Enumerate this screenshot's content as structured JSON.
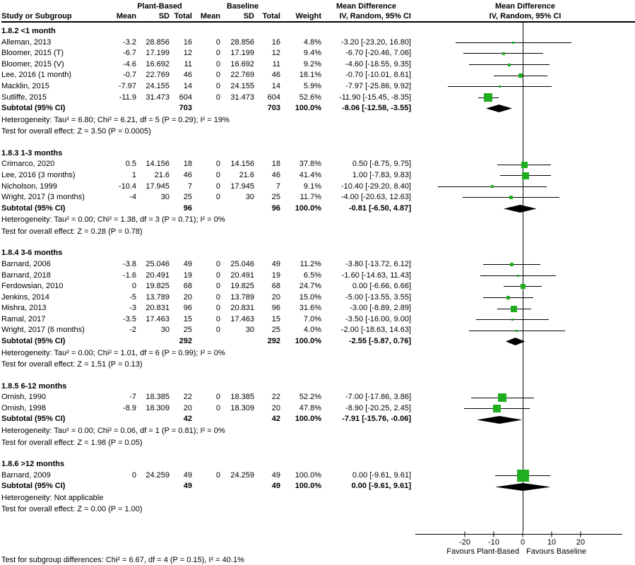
{
  "header": {
    "study_col": "Study or Subgroup",
    "group1": "Plant-Based",
    "group2": "Baseline",
    "md_label": "Mean Difference",
    "md_sub": "IV, Random, 95% CI",
    "plot_md_label": "Mean Difference",
    "plot_md_sub": "IV, Random, 95% CI",
    "cols": [
      "Mean",
      "SD",
      "Total",
      "Mean",
      "SD",
      "Total",
      "Weight"
    ]
  },
  "chart_data": {
    "type": "forest",
    "effect_measure": "Mean Difference, IV, Random, 95% CI",
    "colors": {
      "marker": "#1fae1f",
      "diamond": "#000000",
      "line": "#000000"
    },
    "axis": {
      "ticks": [
        -20,
        -10,
        0,
        10,
        20
      ],
      "xmin": -37,
      "xmax": 36,
      "label_left": "Favours Plant-Based",
      "label_right": "Favours Baseline"
    },
    "subgroups": [
      {
        "label": "1.8.2 <1 month",
        "studies": [
          {
            "study": "Alleman, 2013",
            "mean1": "-3.2",
            "sd1": "28.856",
            "total1": "16",
            "mean2": "0",
            "sd2": "28.856",
            "total2": "16",
            "weight": "4.8%",
            "ci_label": "-3.20 [-23.20, 16.80]",
            "est": -3.2,
            "lo": -23.2,
            "hi": 16.8,
            "weight_pct": 4.8
          },
          {
            "study": "Bloomer, 2015 (T)",
            "mean1": "-6.7",
            "sd1": "17.199",
            "total1": "12",
            "mean2": "0",
            "sd2": "17.199",
            "total2": "12",
            "weight": "9.4%",
            "ci_label": "-6.70 [-20.46, 7.06]",
            "est": -6.7,
            "lo": -20.46,
            "hi": 7.06,
            "weight_pct": 9.4
          },
          {
            "study": "Bloomer, 2015 (V)",
            "mean1": "-4.6",
            "sd1": "16.692",
            "total1": "11",
            "mean2": "0",
            "sd2": "16.692",
            "total2": "11",
            "weight": "9.2%",
            "ci_label": "-4.60 [-18.55, 9.35]",
            "est": -4.6,
            "lo": -18.55,
            "hi": 9.35,
            "weight_pct": 9.2
          },
          {
            "study": "Lee, 2016 (1 month)",
            "mean1": "-0.7",
            "sd1": "22.769",
            "total1": "46",
            "mean2": "0",
            "sd2": "22.769",
            "total2": "46",
            "weight": "18.1%",
            "ci_label": "-0.70 [-10.01, 8.61]",
            "est": -0.7,
            "lo": -10.01,
            "hi": 8.61,
            "weight_pct": 18.1
          },
          {
            "study": "Macklin, 2015",
            "mean1": "-7.97",
            "sd1": "24.155",
            "total1": "14",
            "mean2": "0",
            "sd2": "24.155",
            "total2": "14",
            "weight": "5.9%",
            "ci_label": "-7.97 [-25.86, 9.92]",
            "est": -7.97,
            "lo": -25.86,
            "hi": 9.92,
            "weight_pct": 5.9
          },
          {
            "study": "Sutliffe, 2015",
            "mean1": "-11.9",
            "sd1": "31.473",
            "total1": "604",
            "mean2": "0",
            "sd2": "31.473",
            "total2": "604",
            "weight": "52.6%",
            "ci_label": "-11.90 [-15.45, -8.35]",
            "est": -11.9,
            "lo": -15.45,
            "hi": -8.35,
            "weight_pct": 52.6
          }
        ],
        "subtotal": {
          "study": "Subtotal (95% CI)",
          "total1": "703",
          "total2": "703",
          "weight": "100.0%",
          "ci_label": "-8.06 [-12.58, -3.55]",
          "est": -8.06,
          "lo": -12.58,
          "hi": -3.55
        },
        "heterogeneity": "Heterogeneity: Tau² = 6.80; Chi² = 6.21, df = 5 (P = 0.29); I² = 19%",
        "overall": "Test for overall effect: Z = 3.50 (P = 0.0005)"
      },
      {
        "label": "1.8.3 1-3 months",
        "studies": [
          {
            "study": "Crimarco, 2020",
            "mean1": "0.5",
            "sd1": "14.156",
            "total1": "18",
            "mean2": "0",
            "sd2": "14.156",
            "total2": "18",
            "weight": "37.8%",
            "ci_label": "0.50 [-8.75, 9.75]",
            "est": 0.5,
            "lo": -8.75,
            "hi": 9.75,
            "weight_pct": 37.8
          },
          {
            "study": "Lee, 2016 (3 months)",
            "mean1": "1",
            "sd1": "21.6",
            "total1": "46",
            "mean2": "0",
            "sd2": "21.6",
            "total2": "46",
            "weight": "41.4%",
            "ci_label": "1.00 [-7.83, 9.83]",
            "est": 1.0,
            "lo": -7.83,
            "hi": 9.83,
            "weight_pct": 41.4
          },
          {
            "study": "Nicholson, 1999",
            "mean1": "-10.4",
            "sd1": "17.945",
            "total1": "7",
            "mean2": "0",
            "sd2": "17.945",
            "total2": "7",
            "weight": "9.1%",
            "ci_label": "-10.40 [-29.20, 8.40]",
            "est": -10.4,
            "lo": -29.2,
            "hi": 8.4,
            "weight_pct": 9.1
          },
          {
            "study": "Wright, 2017 (3 months)",
            "mean1": "-4",
            "sd1": "30",
            "total1": "25",
            "mean2": "0",
            "sd2": "30",
            "total2": "25",
            "weight": "11.7%",
            "ci_label": "-4.00 [-20.63, 12.63]",
            "est": -4.0,
            "lo": -20.63,
            "hi": 12.63,
            "weight_pct": 11.7
          }
        ],
        "subtotal": {
          "study": "Subtotal (95% CI)",
          "total1": "96",
          "total2": "96",
          "weight": "100.0%",
          "ci_label": "-0.81 [-6.50, 4.87]",
          "est": -0.81,
          "lo": -6.5,
          "hi": 4.87
        },
        "heterogeneity": "Heterogeneity: Tau² = 0.00; Chi² = 1.38, df = 3 (P = 0.71); I² = 0%",
        "overall": "Test for overall effect: Z = 0.28 (P = 0.78)"
      },
      {
        "label": "1.8.4 3-6 months",
        "studies": [
          {
            "study": "Barnard, 2006",
            "mean1": "-3.8",
            "sd1": "25.046",
            "total1": "49",
            "mean2": "0",
            "sd2": "25.046",
            "total2": "49",
            "weight": "11.2%",
            "ci_label": "-3.80 [-13.72, 6.12]",
            "est": -3.8,
            "lo": -13.72,
            "hi": 6.12,
            "weight_pct": 11.2
          },
          {
            "study": "Barnard, 2018",
            "mean1": "-1.6",
            "sd1": "20.491",
            "total1": "19",
            "mean2": "0",
            "sd2": "20.491",
            "total2": "19",
            "weight": "6.5%",
            "ci_label": "-1.60 [-14.63, 11.43]",
            "est": -1.6,
            "lo": -14.63,
            "hi": 11.43,
            "weight_pct": 6.5
          },
          {
            "study": "Ferdowsian, 2010",
            "mean1": "0",
            "sd1": "19.825",
            "total1": "68",
            "mean2": "0",
            "sd2": "19.825",
            "total2": "68",
            "weight": "24.7%",
            "ci_label": "0.00 [-6.66, 6.66]",
            "est": 0.0,
            "lo": -6.66,
            "hi": 6.66,
            "weight_pct": 24.7
          },
          {
            "study": "Jenkins, 2014",
            "mean1": "-5",
            "sd1": "13.789",
            "total1": "20",
            "mean2": "0",
            "sd2": "13.789",
            "total2": "20",
            "weight": "15.0%",
            "ci_label": "-5.00 [-13.55, 3.55]",
            "est": -5.0,
            "lo": -13.55,
            "hi": 3.55,
            "weight_pct": 15.0
          },
          {
            "study": "Mishra, 2013",
            "mean1": "-3",
            "sd1": "20.831",
            "total1": "96",
            "mean2": "0",
            "sd2": "20.831",
            "total2": "96",
            "weight": "31.6%",
            "ci_label": "-3.00 [-8.89, 2.89]",
            "est": -3.0,
            "lo": -8.89,
            "hi": 2.89,
            "weight_pct": 31.6
          },
          {
            "study": "Ramal, 2017",
            "mean1": "-3.5",
            "sd1": "17.463",
            "total1": "15",
            "mean2": "0",
            "sd2": "17.463",
            "total2": "15",
            "weight": "7.0%",
            "ci_label": "-3.50 [-16.00, 9.00]",
            "est": -3.5,
            "lo": -16.0,
            "hi": 9.0,
            "weight_pct": 7.0
          },
          {
            "study": "Wright, 2017 (6 months)",
            "mean1": "-2",
            "sd1": "30",
            "total1": "25",
            "mean2": "0",
            "sd2": "30",
            "total2": "25",
            "weight": "4.0%",
            "ci_label": "-2.00 [-18.63, 14.63]",
            "est": -2.0,
            "lo": -18.63,
            "hi": 14.63,
            "weight_pct": 4.0
          }
        ],
        "subtotal": {
          "study": "Subtotal (95% CI)",
          "total1": "292",
          "total2": "292",
          "weight": "100.0%",
          "ci_label": "-2.55 [-5.87, 0.76]",
          "est": -2.55,
          "lo": -5.87,
          "hi": 0.76
        },
        "heterogeneity": "Heterogeneity: Tau² = 0.00; Chi² = 1.01, df = 6 (P = 0.99); I² = 0%",
        "overall": "Test for overall effect: Z = 1.51 (P = 0.13)"
      },
      {
        "label": "1.8.5 6-12 months",
        "studies": [
          {
            "study": "Ornish, 1990",
            "mean1": "-7",
            "sd1": "18.385",
            "total1": "22",
            "mean2": "0",
            "sd2": "18.385",
            "total2": "22",
            "weight": "52.2%",
            "ci_label": "-7.00 [-17.86, 3.86]",
            "est": -7.0,
            "lo": -17.86,
            "hi": 3.86,
            "weight_pct": 52.2
          },
          {
            "study": "Ornish, 1998",
            "mean1": "-8.9",
            "sd1": "18.309",
            "total1": "20",
            "mean2": "0",
            "sd2": "18.309",
            "total2": "20",
            "weight": "47.8%",
            "ci_label": "-8.90 [-20.25, 2.45]",
            "est": -8.9,
            "lo": -20.25,
            "hi": 2.45,
            "weight_pct": 47.8
          }
        ],
        "subtotal": {
          "study": "Subtotal (95% CI)",
          "total1": "42",
          "total2": "42",
          "weight": "100.0%",
          "ci_label": "-7.91 [-15.76, -0.06]",
          "est": -7.91,
          "lo": -15.76,
          "hi": -0.06
        },
        "heterogeneity": "Heterogeneity: Tau² = 0.00; Chi² = 0.06, df = 1 (P = 0.81); I² = 0%",
        "overall": "Test for overall effect: Z = 1.98 (P = 0.05)"
      },
      {
        "label": "1.8.6 >12 months",
        "studies": [
          {
            "study": "Barnard, 2009",
            "mean1": "0",
            "sd1": "24.259",
            "total1": "49",
            "mean2": "0",
            "sd2": "24.259",
            "total2": "49",
            "weight": "100.0%",
            "ci_label": "0.00 [-9.61, 9.61]",
            "est": 0.0,
            "lo": -9.61,
            "hi": 9.61,
            "weight_pct": 100.0
          }
        ],
        "subtotal": {
          "study": "Subtotal (95% CI)",
          "total1": "49",
          "total2": "49",
          "weight": "100.0%",
          "ci_label": "0.00 [-9.61, 9.61]",
          "est": 0.0,
          "lo": -9.61,
          "hi": 9.61
        },
        "heterogeneity": "Heterogeneity: Not applicable",
        "overall": "Test for overall effect: Z = 0.00 (P = 1.00)"
      }
    ],
    "footer": "Test for subgroup differences: Chi² = 6.67, df = 4 (P = 0.15), I² = 40.1%"
  }
}
